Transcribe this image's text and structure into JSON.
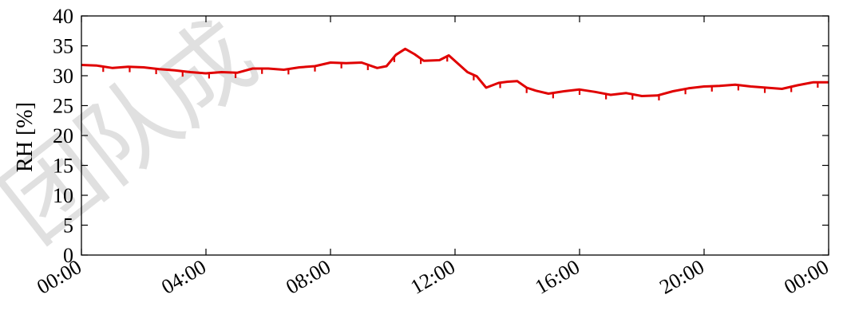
{
  "chart_data": {
    "type": "line",
    "title": "",
    "xlabel": "",
    "ylabel": "RH [%]",
    "xlim": [
      "00:00",
      "24:00"
    ],
    "ylim": [
      0,
      40
    ],
    "x_ticks": [
      "00:00",
      "04:00",
      "08:00",
      "12:00",
      "16:00",
      "20:00",
      "00:00"
    ],
    "y_ticks": [
      "0",
      "5",
      "10",
      "15",
      "20",
      "25",
      "30",
      "35",
      "40"
    ],
    "grid": false,
    "legend": "none",
    "series": [
      {
        "color": "#e00000",
        "x_hours": [
          0,
          0.5,
          1,
          1.5,
          2,
          2.5,
          3,
          3.5,
          4,
          4.5,
          5,
          5.5,
          6,
          6.5,
          7,
          7.5,
          8,
          8.5,
          9,
          9.5,
          9.8,
          10.1,
          10.4,
          10.7,
          11,
          11.5,
          11.8,
          12.1,
          12.4,
          12.7,
          13,
          13.4,
          13.7,
          14,
          14.3,
          14.6,
          15,
          15.5,
          16,
          16.5,
          17,
          17.5,
          18,
          18.5,
          19,
          19.5,
          20,
          20.5,
          21,
          21.5,
          22,
          22.5,
          23,
          23.5,
          24
        ],
        "y": [
          31.8,
          31.7,
          31.3,
          31.5,
          31.4,
          31.1,
          30.9,
          30.6,
          30.4,
          30.6,
          30.5,
          31.2,
          31.2,
          31.0,
          31.4,
          31.6,
          32.2,
          32.1,
          32.2,
          31.3,
          31.6,
          33.5,
          34.5,
          33.6,
          32.5,
          32.6,
          33.4,
          32.0,
          30.6,
          29.9,
          28.0,
          28.8,
          29.0,
          29.1,
          28.0,
          27.5,
          27.0,
          27.4,
          27.7,
          27.3,
          26.8,
          27.1,
          26.6,
          26.7,
          27.4,
          27.9,
          28.2,
          28.3,
          28.5,
          28.2,
          28.0,
          27.8,
          28.4,
          28.9,
          28.9
        ]
      }
    ]
  },
  "watermark_text": "团队成"
}
